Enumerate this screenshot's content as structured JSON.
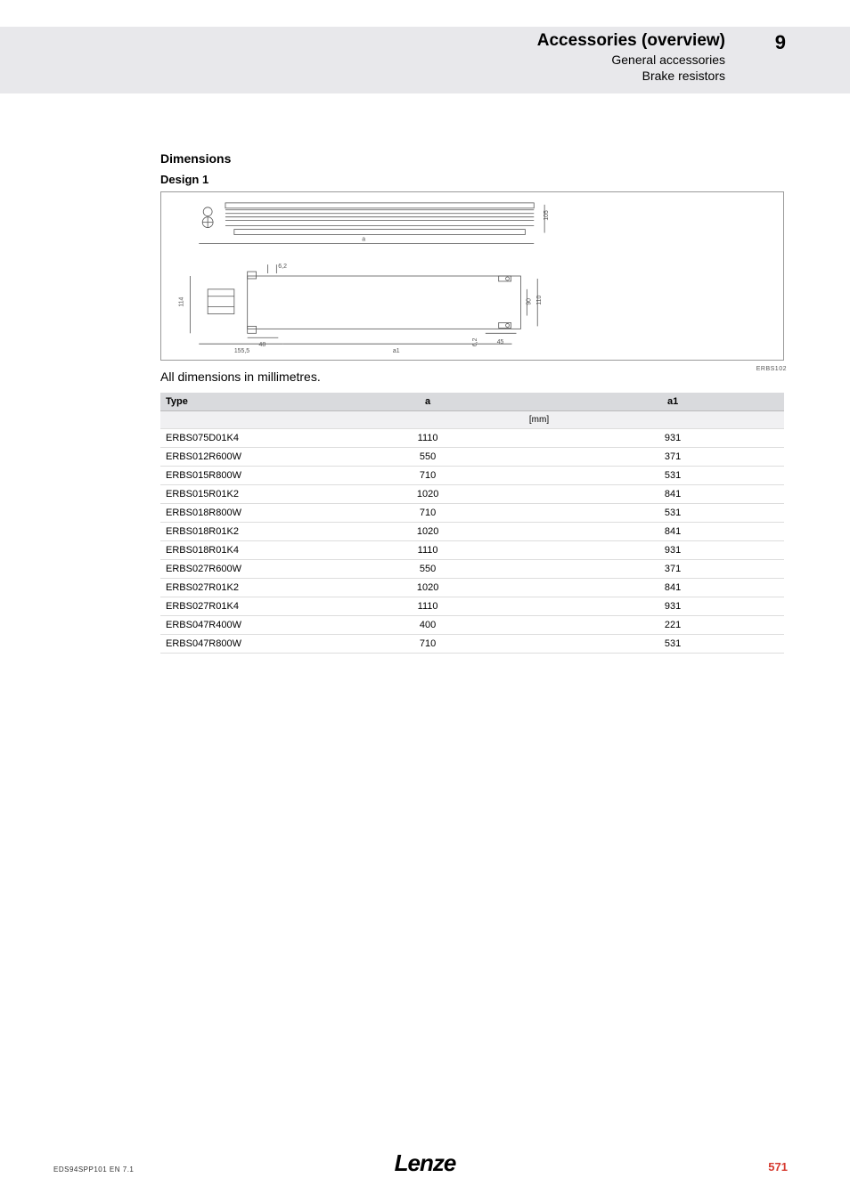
{
  "header": {
    "title": "Accessories (overview)",
    "subtitle1": "General accessories",
    "subtitle2": "Brake resistors",
    "section_number": "9",
    "band_color": "#e8e8eb"
  },
  "section": {
    "dimensions_heading": "Dimensions",
    "design_heading": "Design 1",
    "diagram_code": "ERBS102",
    "note": "All dimensions in millimetres.",
    "diagram": {
      "top_view": {
        "dim_right": "105",
        "dim_a_label": "a"
      },
      "side_view": {
        "dim_left": "114",
        "dim_155_5": "155,5",
        "dim_48": "48",
        "dim_6_2_top": "6,2",
        "dim_6_2_bottom": "6,2",
        "dim_45": "45",
        "dim_90": "90",
        "dim_110": "110",
        "dim_a1_label": "a1"
      }
    }
  },
  "table": {
    "columns": [
      "Type",
      "a",
      "a1"
    ],
    "unit_row": [
      "",
      "[mm]",
      ""
    ],
    "unit_colspan": true,
    "rows": [
      [
        "ERBS075D01K4",
        "1110",
        "931"
      ],
      [
        "ERBS012R600W",
        "550",
        "371"
      ],
      [
        "ERBS015R800W",
        "710",
        "531"
      ],
      [
        "ERBS015R01K2",
        "1020",
        "841"
      ],
      [
        "ERBS018R800W",
        "710",
        "531"
      ],
      [
        "ERBS018R01K2",
        "1020",
        "841"
      ],
      [
        "ERBS018R01K4",
        "1110",
        "931"
      ],
      [
        "ERBS027R600W",
        "550",
        "371"
      ],
      [
        "ERBS027R01K2",
        "1020",
        "841"
      ],
      [
        "ERBS027R01K4",
        "1110",
        "931"
      ],
      [
        "ERBS047R400W",
        "400",
        "221"
      ],
      [
        "ERBS047R800W",
        "710",
        "531"
      ]
    ],
    "header_bg": "#d9dadd",
    "row_border": "#dddddd",
    "font_size_pt": 8
  },
  "footer": {
    "doc_id": "EDS94SPP101  EN  7.1",
    "logo_text": "Lenze",
    "page_number": "571",
    "page_color": "#d63a2f"
  }
}
